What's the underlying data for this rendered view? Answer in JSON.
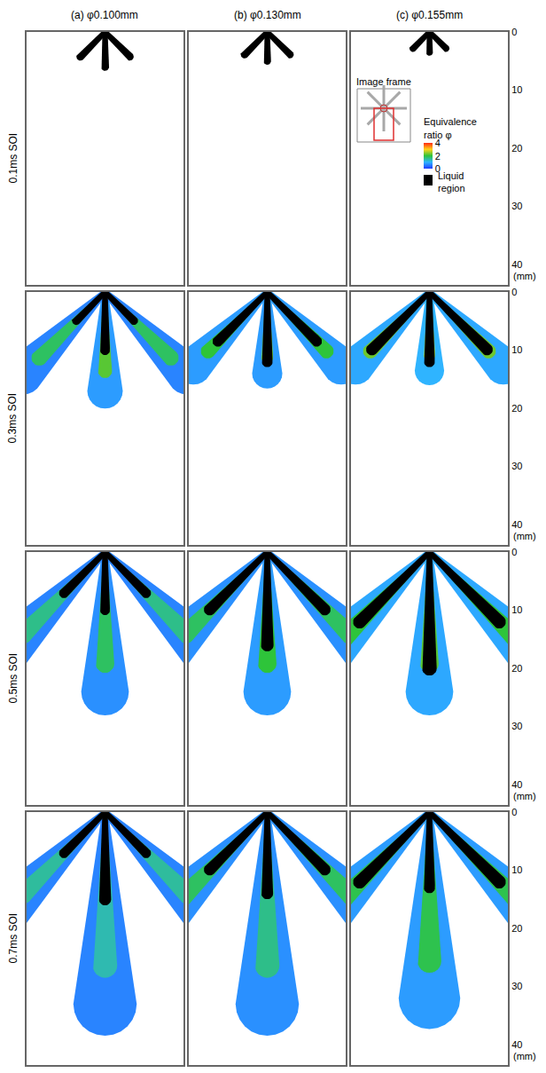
{
  "chart_data": {
    "type": "spray_image_grid",
    "columns": [
      "(a) φ0.100mm",
      "(b) φ0.130mm",
      "(c) φ0.155mm"
    ],
    "rows": [
      "0.1ms SOI",
      "0.3ms SOI",
      "0.5ms SOI",
      "0.7ms SOI"
    ],
    "xlim": [
      -13.5,
      13.5
    ],
    "ylim": [
      43.5,
      0
    ],
    "yticks": [
      0,
      10,
      20,
      30,
      40
    ],
    "ylabel": "(mm)",
    "tick_labels": "y",
    "grid": false,
    "side_plume_angle": 45,
    "colorbar": {
      "title": "Equivalence ratio φ",
      "range": [
        0,
        4
      ],
      "ticks": [
        0,
        2,
        4
      ]
    },
    "liquid_label": "Liquid region",
    "liquid_color": "#000000",
    "inset_label": "Image frame",
    "panels": [
      [
        {
          "center": {
            "liquid": 6,
            "vapor": null,
            "phi": null
          },
          "side": {
            "liquid": 6,
            "vapor": null,
            "phi": null
          }
        },
        {
          "center": {
            "liquid": 5,
            "vapor": null,
            "phi": null
          },
          "side": {
            "liquid": 5.5,
            "vapor": null,
            "phi": null
          }
        },
        {
          "center": {
            "liquid": 3.5,
            "vapor": null,
            "phi": null
          },
          "side": {
            "liquid": 4,
            "vapor": null,
            "phi": null
          }
        }
      ],
      [
        {
          "center": {
            "liquid": 10,
            "vapor": 17,
            "phi": [
              0.8,
              2.2
            ]
          },
          "side": {
            "liquid": 7,
            "vapor": 20,
            "phi": [
              0.6,
              1.8
            ]
          }
        },
        {
          "center": {
            "liquid": 12,
            "vapor": 14,
            "phi": [
              0.8,
              2.3
            ]
          },
          "side": {
            "liquid": 12,
            "vapor": 18,
            "phi": [
              0.8,
              2
            ]
          }
        },
        {
          "center": {
            "liquid": 12,
            "vapor": 13.5,
            "phi": [
              1,
              2.5
            ]
          },
          "side": {
            "liquid": 14,
            "vapor": 18,
            "phi": [
              0.9,
              2.3
            ]
          }
        }
      ],
      [
        {
          "center": {
            "liquid": 10,
            "vapor": 24,
            "phi": [
              0.7,
              1.8
            ]
          },
          "side": {
            "liquid": 10,
            "vapor": 25,
            "phi": [
              0.6,
              1.6
            ]
          }
        },
        {
          "center": {
            "liquid": 16,
            "vapor": 24,
            "phi": [
              0.8,
              2
            ]
          },
          "side": {
            "liquid": 14,
            "vapor": 25,
            "phi": [
              0.7,
              1.8
            ]
          }
        },
        {
          "center": {
            "liquid": 20,
            "vapor": 24,
            "phi": [
              0.9,
              2.2
            ]
          },
          "side": {
            "liquid": 17,
            "vapor": 26,
            "phi": [
              0.9,
              2
            ]
          }
        }
      ],
      [
        {
          "center": {
            "liquid": 15,
            "vapor": 33,
            "phi": [
              0.6,
              1.4
            ]
          },
          "side": {
            "liquid": 10,
            "vapor": 25,
            "phi": [
              0.6,
              1.5
            ]
          }
        },
        {
          "center": {
            "liquid": 14,
            "vapor": 33,
            "phi": [
              0.7,
              1.6
            ]
          },
          "side": {
            "liquid": 14,
            "vapor": 26,
            "phi": [
              0.7,
              1.8
            ]
          }
        },
        {
          "center": {
            "liquid": 13,
            "vapor": 32,
            "phi": [
              0.8,
              1.9
            ]
          },
          "side": {
            "liquid": 17,
            "vapor": 26,
            "phi": [
              0.8,
              1.9
            ]
          }
        }
      ]
    ]
  }
}
